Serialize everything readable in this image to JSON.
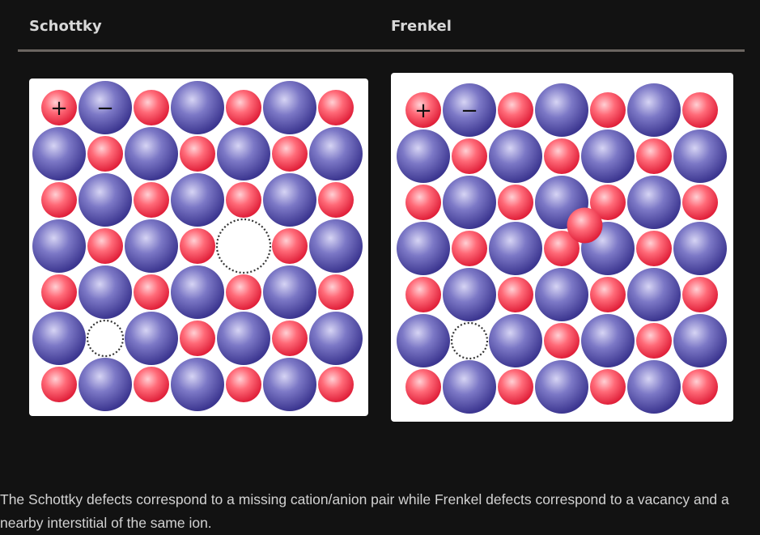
{
  "headers": {
    "schottky": "Schottky",
    "frenkel": "Frenkel"
  },
  "legend": {
    "cation_symbol": "+",
    "anion_symbol": "−"
  },
  "caption": "The Schottky defects correspond to a missing cation/anion pair while Frenkel defects correspond to a vacancy and a nearby interstitial of the same ion.",
  "colors": {
    "background": "#121212",
    "cation": "#f2485a",
    "anion": "#5650a8",
    "panel": "#ffffff"
  },
  "lattice": {
    "rows": 7,
    "cols": 7,
    "schottky_vacancies": [
      [
        3,
        4
      ],
      [
        5,
        1
      ]
    ],
    "frenkel_vacancies": [
      [
        5,
        1
      ]
    ],
    "frenkel_interstitial": [
      2.5,
      3.5
    ]
  }
}
